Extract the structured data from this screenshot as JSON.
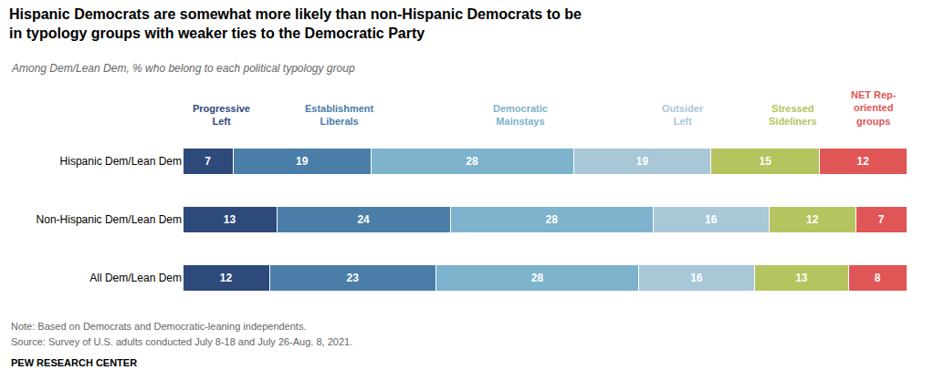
{
  "chart_data": {
    "type": "bar",
    "orientation": "horizontal",
    "stacked": true,
    "data_labels": true,
    "title": "Hispanic Democrats are somewhat more likely than non-Hispanic Democrats to be\nin typology groups with weaker ties to the Democratic Party",
    "subtitle": "Among Dem/Lean Dem, % who belong to each political typology group",
    "categories": [
      "Hispanic Dem/Lean Dem",
      "Non-Hispanic Dem/Lean Dem",
      "All Dem/Lean Dem"
    ],
    "series": [
      {
        "name": "Progressive\nLeft",
        "color": "#2e4a7a",
        "values": [
          7,
          13,
          12
        ]
      },
      {
        "name": "Establishment\nLiberals",
        "color": "#4a7da8",
        "values": [
          19,
          24,
          23
        ]
      },
      {
        "name": "Democratic\nMainstays",
        "color": "#7db3cc",
        "values": [
          28,
          28,
          28
        ]
      },
      {
        "name": "Outsider\nLeft",
        "color": "#a8c8d8",
        "values": [
          19,
          16,
          16
        ]
      },
      {
        "name": "Stressed\nSideliners",
        "color": "#b5c45e",
        "values": [
          15,
          12,
          13
        ]
      },
      {
        "name": "NET Rep-\noriented\ngroups",
        "color": "#e05555",
        "values": [
          12,
          7,
          8
        ]
      }
    ],
    "xlim": [
      0,
      100
    ],
    "tick_labels": "y",
    "grid": false,
    "note": "Note: Based on Democrats and Democratic-leaning independents.",
    "source": "Source: Survey of U.S. adults conducted July 8-18 and July 26-Aug. 8, 2021.",
    "footer": "PEW RESEARCH CENTER"
  }
}
